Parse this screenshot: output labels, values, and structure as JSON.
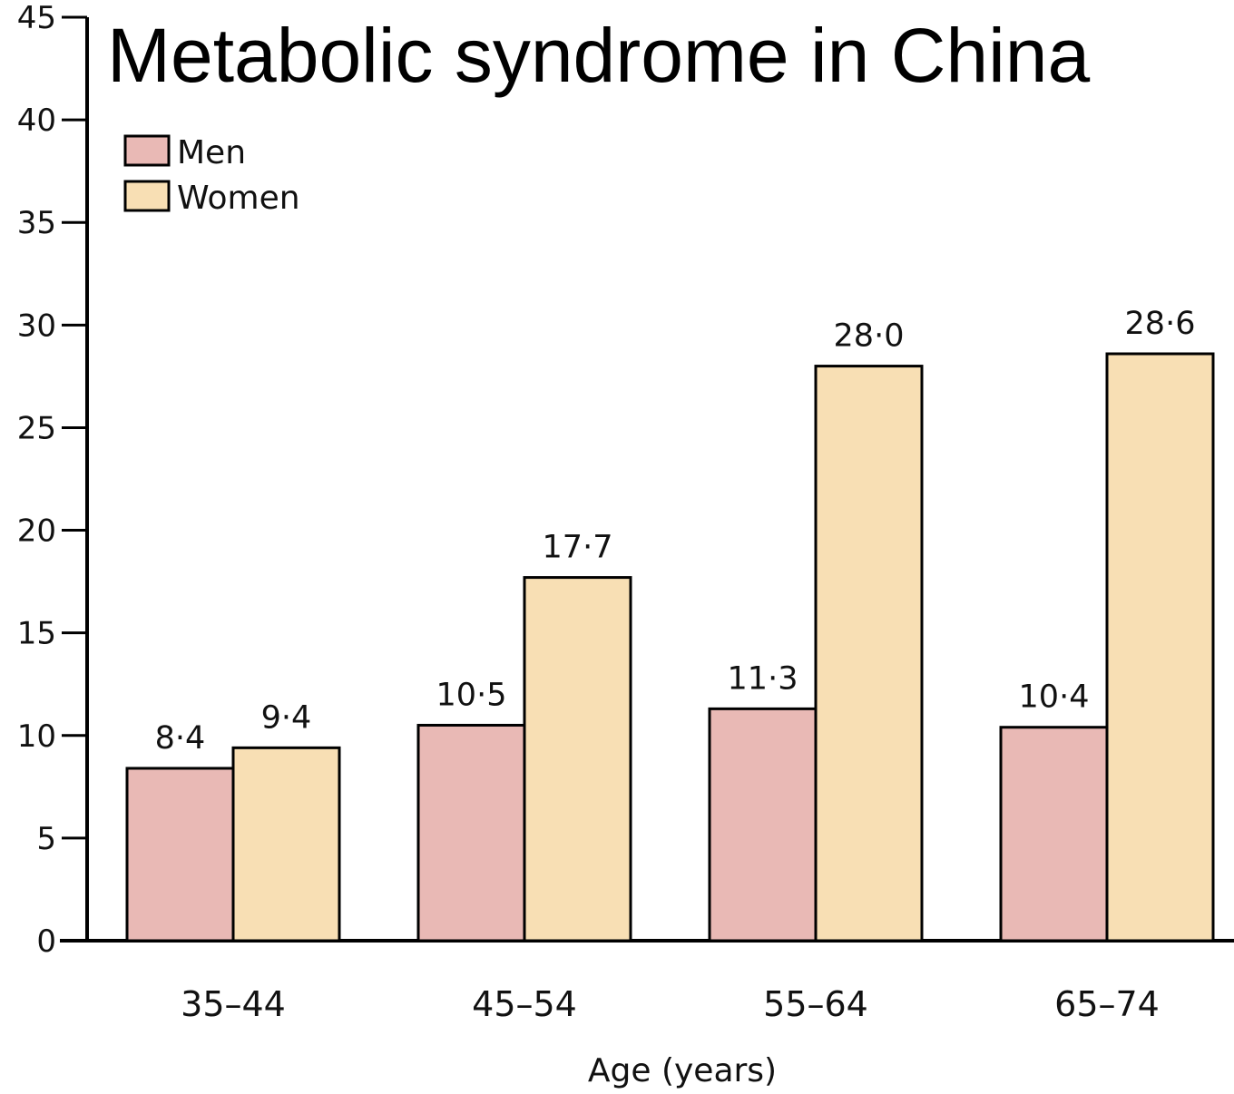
{
  "chart_data": {
    "type": "bar",
    "title": "Metabolic syndrome in China",
    "xlabel": "Age (years)",
    "ylabel": "",
    "categories": [
      "35–44",
      "45–54",
      "55–64",
      "65–74"
    ],
    "series": [
      {
        "name": "Men",
        "values": [
          8.4,
          10.5,
          11.3,
          10.4
        ],
        "labels": [
          "8·4",
          "10·5",
          "11·3",
          "10·4"
        ],
        "color": "#e9b9b5"
      },
      {
        "name": "Women",
        "values": [
          9.4,
          17.7,
          28.0,
          28.6
        ],
        "labels": [
          "9·4",
          "17·7",
          "28·0",
          "28·6"
        ],
        "color": "#f8dfb4"
      }
    ],
    "ylim": [
      0,
      45
    ],
    "yticks": [
      0,
      5,
      10,
      15,
      20,
      25,
      30,
      35,
      40,
      45
    ],
    "grid": false,
    "legend_position": "top-left"
  }
}
